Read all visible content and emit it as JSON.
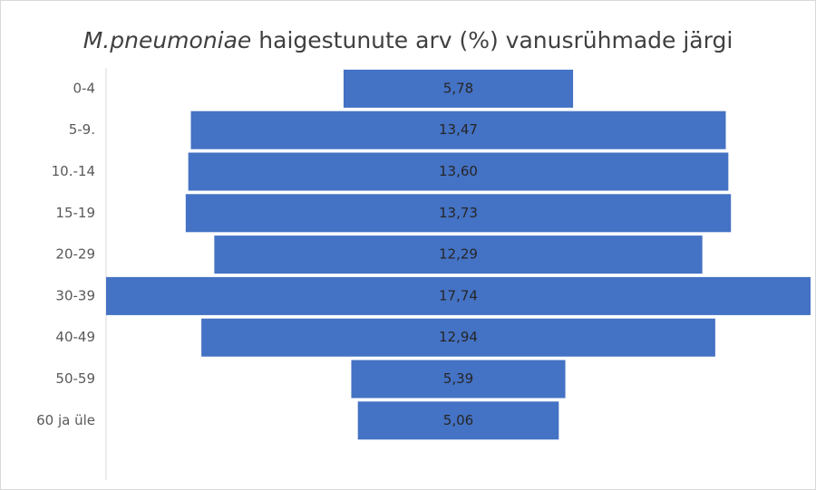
{
  "chart_data": {
    "type": "funnel",
    "title": {
      "italic": "M.pneumoniae",
      "text": "haigestunute arv (%) vanusrühmade järgi"
    },
    "categories": [
      "0-4",
      "5-9.",
      "10.-14",
      "15-19",
      "20-29",
      "30-39",
      "40-49",
      "50-59",
      "60 ja üle"
    ],
    "values": [
      5.78,
      13.47,
      13.6,
      13.73,
      12.29,
      17.74,
      12.94,
      5.39,
      5.06
    ],
    "value_labels": [
      "5,78",
      "13,47",
      "13,60",
      "13,73",
      "12,29",
      "17,74",
      "12,94",
      "5,39",
      "5,06"
    ],
    "color": "#4472c4"
  }
}
